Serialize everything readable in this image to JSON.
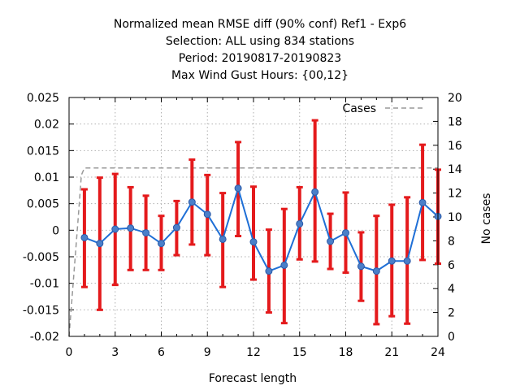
{
  "chart_data": {
    "type": "line",
    "title_lines": [
      "Normalized mean RMSE diff (90% conf) Ref1 - Exp6",
      "Selection: ALL using   834 stations",
      "Period: 20190817-20190823",
      "Max Wind Gust   Hours: {00,12}"
    ],
    "xlabel": "Forecast length",
    "ylabel_right": "No cases",
    "xlim": [
      0,
      24
    ],
    "ylim": [
      -0.02,
      0.025
    ],
    "ylim_right": [
      0,
      20
    ],
    "x_ticks": [
      "0",
      "3",
      "6",
      "9",
      "12",
      "15",
      "18",
      "21",
      "24"
    ],
    "y_ticks": [
      "-0.02",
      "-0.015",
      "-0.01",
      "-0.005",
      "0",
      "0.005",
      "0.01",
      "0.015",
      "0.02",
      "0.025"
    ],
    "y2_ticks": [
      "0",
      "2",
      "4",
      "6",
      "8",
      "10",
      "12",
      "14",
      "16",
      "18",
      "20"
    ],
    "grid": true,
    "legend": {
      "label": "Cases",
      "placement": "top-right"
    },
    "colors": {
      "line": "#1f6fd6",
      "marker": "#4a7fc9",
      "errorbar": "#e41a1c",
      "cases": "#999999"
    },
    "series": [
      {
        "x": [
          1,
          2,
          3,
          4,
          5,
          6,
          7,
          8,
          9,
          10,
          11,
          12,
          13,
          14,
          15,
          16,
          17,
          18,
          19,
          20,
          21,
          22,
          23,
          24
        ],
        "values": [
          -0.0014,
          -0.0025,
          0.0002,
          0.0004,
          -0.0005,
          -0.0025,
          0.0005,
          0.0053,
          0.003,
          -0.0017,
          0.0079,
          -0.0022,
          -0.0077,
          -0.0066,
          0.0012,
          0.0072,
          -0.0021,
          -0.0005,
          -0.0068,
          -0.0077,
          -0.0058,
          -0.0058,
          0.0052,
          0.0026
        ],
        "err_low": [
          -0.0107,
          -0.015,
          -0.0103,
          -0.0075,
          -0.0075,
          -0.0075,
          -0.0047,
          -0.0027,
          -0.0047,
          -0.0107,
          -0.0011,
          -0.0093,
          -0.0155,
          -0.0175,
          -0.0055,
          -0.0059,
          -0.0073,
          -0.008,
          -0.0133,
          -0.0177,
          -0.0162,
          -0.0176,
          -0.0056,
          -0.0063
        ],
        "err_high": [
          0.0077,
          0.0099,
          0.0106,
          0.0081,
          0.0065,
          0.0027,
          0.0055,
          0.0133,
          0.0104,
          0.007,
          0.0166,
          0.0082,
          0.0001,
          0.004,
          0.0081,
          0.0207,
          0.0031,
          0.0071,
          -0.0004,
          0.0027,
          0.0048,
          0.0062,
          0.0161,
          0.0114
        ]
      },
      {
        "name": "Cases",
        "axis": "right",
        "x": [
          0,
          0.6,
          0.8,
          1,
          2,
          3,
          4,
          5,
          6,
          7,
          8,
          9,
          10,
          11,
          12,
          13,
          14,
          15,
          16,
          17,
          18,
          19,
          20,
          21,
          22,
          23,
          24
        ],
        "values": [
          0,
          10,
          13.5,
          14.1,
          14.1,
          14.1,
          14.1,
          14.1,
          14.1,
          14.1,
          14.1,
          14.1,
          14.1,
          14.1,
          14.1,
          14.1,
          14.1,
          14.1,
          14.1,
          14.1,
          14.1,
          14.1,
          14.1,
          14.1,
          14.1,
          14.1,
          14.1
        ]
      }
    ]
  }
}
